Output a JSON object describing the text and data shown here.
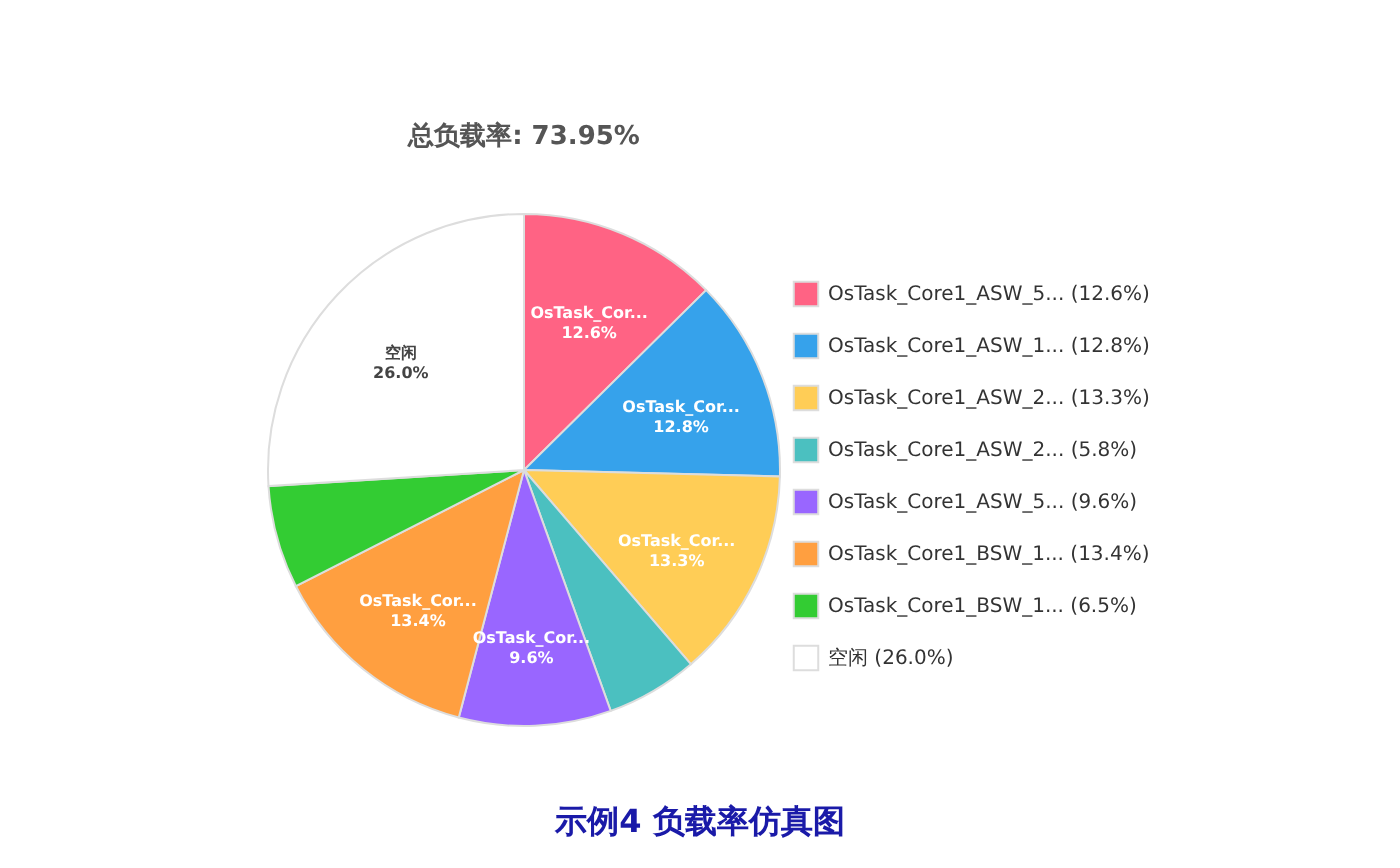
{
  "chart_data": {
    "type": "pie",
    "title": "总负载率: 73.95%",
    "categories": [
      "OsTask_Core1_ASW_5... (12.6%)",
      "OsTask_Core1_ASW_1... (12.8%)",
      "OsTask_Core1_ASW_2... (13.3%)",
      "OsTask_Core1_ASW_2... (5.8%)",
      "OsTask_Core1_ASW_5... (9.6%)",
      "OsTask_Core1_BSW_1... (13.4%)",
      "OsTask_Core1_BSW_1... (6.5%)",
      "空闲 (26.0%)"
    ],
    "values": [
      12.6,
      12.8,
      13.3,
      5.8,
      9.6,
      13.4,
      6.5,
      26.0
    ],
    "colors": [
      "#ff6384",
      "#36a2eb",
      "#ffcd56",
      "#4bc0c0",
      "#9966ff",
      "#ff9f40",
      "#33cc33",
      "#ffffff"
    ],
    "value_labels": [
      "OsTask_Cor...\n12.6%",
      "OsTask_Cor...\n12.8%",
      "OsTask_Cor...\n13.3%",
      null,
      "OsTask_Cor...\n9.6%",
      "OsTask_Cor...\n13.4%",
      null,
      "空闲\n26.0%"
    ],
    "legend": "right",
    "annotations": [
      "示例4 负载率仿真图"
    ]
  }
}
